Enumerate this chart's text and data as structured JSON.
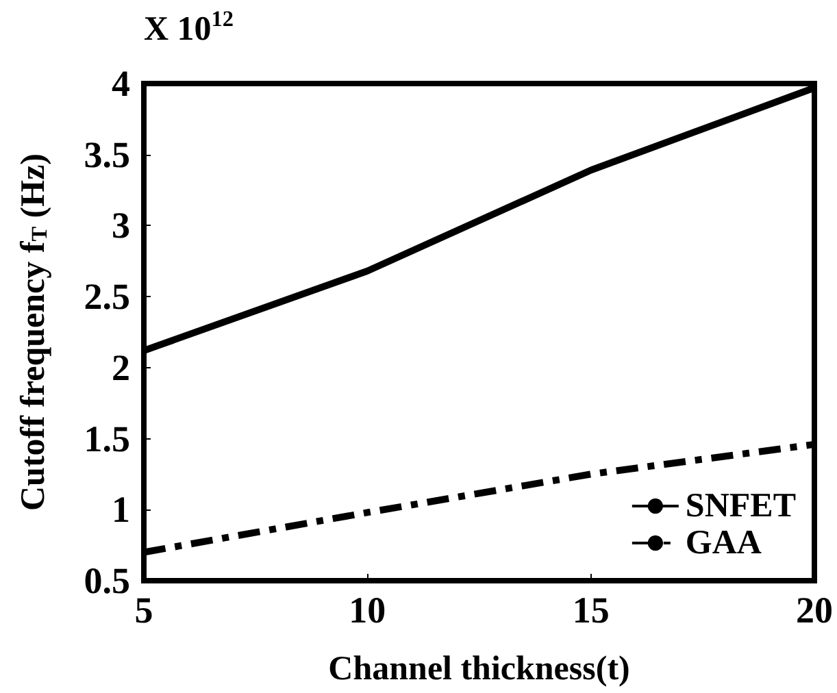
{
  "chart_data": {
    "type": "line",
    "xlabel": "Channel thickness(t)",
    "ylabel": "Cutoff frequency f$_{T}$ (Hz)",
    "annotations": [
      "X 10$^{12}$"
    ],
    "x": [
      5,
      10,
      15,
      20
    ],
    "series": [
      {
        "name": "SNFET",
        "color": "#000000",
        "values": [
          2.12,
          2.68,
          3.39,
          3.97
        ],
        "line_style": "solid"
      },
      {
        "name": "GAA",
        "color": "#000000",
        "values": [
          0.7,
          0.98,
          1.25,
          1.46
        ],
        "line_style": "dashed"
      }
    ],
    "xlim": [
      5,
      20
    ],
    "xticks": [
      5,
      10,
      15,
      20
    ],
    "ylim": [
      0.5,
      4
    ],
    "yticks": [
      0.5,
      1,
      1.5,
      2,
      2.5,
      3,
      3.5,
      4
    ],
    "grid": false,
    "legend": "bottom right",
    "marker": "none"
  }
}
